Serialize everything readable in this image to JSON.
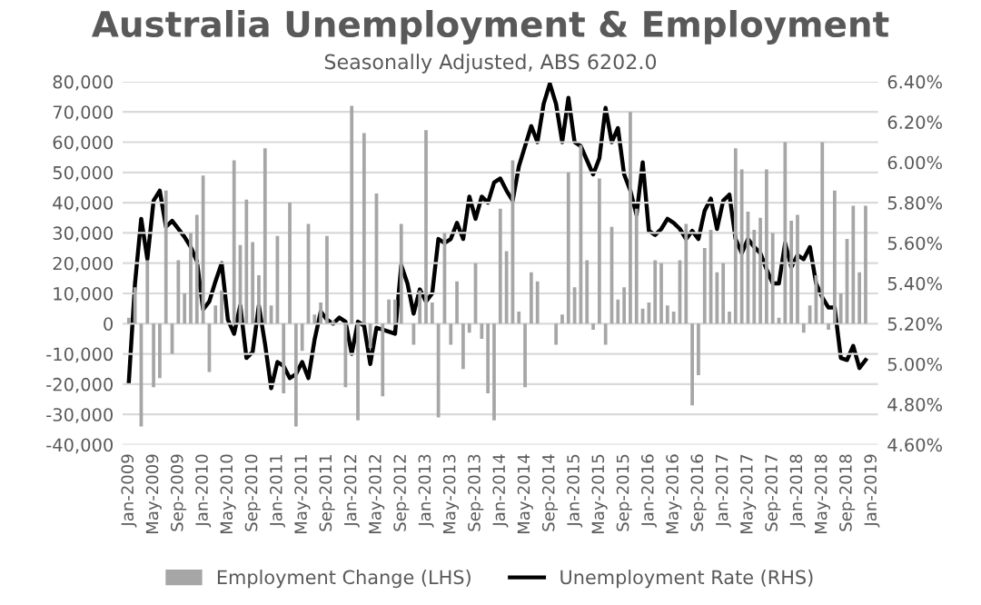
{
  "chart_data": {
    "type": "bar",
    "title": "Australia Unemployment & Employment",
    "subtitle": "Seasonally Adjusted, ABS 6202.0",
    "categories": [
      "Jan-2009",
      null,
      null,
      null,
      "May-2009",
      null,
      null,
      null,
      "Sep-2009",
      null,
      null,
      null,
      "Jan-2010",
      null,
      null,
      null,
      "May-2010",
      null,
      null,
      null,
      "Sep-2010",
      null,
      null,
      null,
      "Jan-2011",
      null,
      null,
      null,
      "May-2011",
      null,
      null,
      null,
      "Sep-2011",
      null,
      null,
      null,
      "Jan-2012",
      null,
      null,
      null,
      "May-2012",
      null,
      null,
      null,
      "Sep-2012",
      null,
      null,
      null,
      "Jan-2013",
      null,
      null,
      null,
      "May-2013",
      null,
      null,
      null,
      "Sep-2013",
      null,
      null,
      null,
      "Jan-2014",
      null,
      null,
      null,
      "May-2014",
      null,
      null,
      null,
      "Sep-2014",
      null,
      null,
      null,
      "Jan-2015",
      null,
      null,
      null,
      "May-2015",
      null,
      null,
      null,
      "Sep-2015",
      null,
      null,
      null,
      "Jan-2016",
      null,
      null,
      null,
      "May-2016",
      null,
      null,
      null,
      "Sep-2016",
      null,
      null,
      null,
      "Jan-2017",
      null,
      null,
      null,
      "May-2017",
      null,
      null,
      null,
      "Sep-2017",
      null,
      null,
      null,
      "Jan-2018",
      null,
      null,
      null,
      "May-2018",
      null,
      null,
      null,
      "Sep-2018",
      null,
      null,
      null,
      "Jan-2019"
    ],
    "series": [
      {
        "name": "Employment Change (LHS)",
        "color": "#a6a6a6",
        "values": [
          2000,
          12000,
          -34000,
          21000,
          -21000,
          -18000,
          44000,
          -10000,
          21000,
          10000,
          30000,
          36000,
          49000,
          -16000,
          6000,
          11000,
          null,
          54000,
          26000,
          41000,
          27000,
          16000,
          58000,
          6000,
          29000,
          -23000,
          40000,
          -34000,
          -9000,
          33000,
          3000,
          7000,
          29000,
          1000,
          null,
          -21000,
          72000,
          -32000,
          63000,
          -8000,
          43000,
          -24000,
          8000,
          8000,
          33000,
          null,
          -7000,
          11000,
          64000,
          7000,
          -31000,
          30000,
          -7000,
          14000,
          -15000,
          -3000,
          20000,
          -5000,
          -23000,
          -32000,
          38000,
          24000,
          54000,
          4000,
          -21000,
          17000,
          14000,
          null,
          null,
          -7000,
          3000,
          50000,
          12000,
          59000,
          21000,
          -2000,
          48000,
          -7000,
          32000,
          8000,
          12000,
          70000,
          38000,
          5000,
          7000,
          21000,
          20000,
          6000,
          4000,
          21000,
          33000,
          -27000,
          -17000,
          25000,
          31000,
          17000,
          20000,
          4000,
          58000,
          51000,
          37000,
          31000,
          35000,
          51000,
          30000,
          2000,
          60000,
          34000,
          36000,
          -3000,
          6000,
          16000,
          60000,
          -2000,
          44000,
          10000,
          28000,
          39000,
          17000,
          39000,
          null
        ]
      },
      {
        "name": "Unemployment Rate (RHS)",
        "type": "line",
        "axis": "y2",
        "color": "#000000",
        "values": [
          4.91,
          5.4,
          5.72,
          5.52,
          5.81,
          5.86,
          5.68,
          5.71,
          5.67,
          5.63,
          5.58,
          5.51,
          5.27,
          5.31,
          5.41,
          5.5,
          5.22,
          5.15,
          5.29,
          5.03,
          5.06,
          5.29,
          5.1,
          4.88,
          5.01,
          4.99,
          4.93,
          4.95,
          5.01,
          4.93,
          5.12,
          5.26,
          5.22,
          5.2,
          5.23,
          5.21,
          5.05,
          5.21,
          5.19,
          5.0,
          5.18,
          5.17,
          5.16,
          5.15,
          5.49,
          5.4,
          5.25,
          5.37,
          5.31,
          5.35,
          5.62,
          5.6,
          5.62,
          5.7,
          5.62,
          5.83,
          5.72,
          5.83,
          5.8,
          5.9,
          5.92,
          5.86,
          5.81,
          5.98,
          6.08,
          6.18,
          6.1,
          6.29,
          6.39,
          6.29,
          6.1,
          6.32,
          6.1,
          6.08,
          6.01,
          5.94,
          6.02,
          6.27,
          6.1,
          6.17,
          5.94,
          5.86,
          5.74,
          6.0,
          5.66,
          5.64,
          5.67,
          5.72,
          5.7,
          5.67,
          5.62,
          5.66,
          5.62,
          5.76,
          5.82,
          5.67,
          5.81,
          5.84,
          5.62,
          5.55,
          5.62,
          5.58,
          5.55,
          5.47,
          5.4,
          5.4,
          5.6,
          5.48,
          5.54,
          5.52,
          5.58,
          5.4,
          5.33,
          5.28,
          5.28,
          5.03,
          5.02,
          5.09,
          4.98,
          5.02,
          null
        ]
      }
    ],
    "ylim": [
      -40000,
      80000
    ],
    "yticks": [
      {
        "value": -40000,
        "label": "-40,000"
      },
      {
        "value": -30000,
        "label": "-30,000"
      },
      {
        "value": -20000,
        "label": "-20,000"
      },
      {
        "value": -10000,
        "label": "-10,000"
      },
      0,
      {
        "value": 10000,
        "label": "10,000"
      },
      {
        "value": 20000,
        "label": "20,000"
      },
      {
        "value": 30000,
        "label": "30,000"
      },
      {
        "value": 40000,
        "label": "40,000"
      },
      {
        "value": 50000,
        "label": "50,000"
      },
      {
        "value": 60000,
        "label": "60,000"
      },
      {
        "value": 70000,
        "label": "70,000"
      },
      {
        "value": 80000,
        "label": "80,000"
      }
    ],
    "y2lim": [
      4.6,
      6.4
    ],
    "y2ticks": [
      {
        "value": 4.6,
        "label": "4.60%"
      },
      {
        "value": 4.8,
        "label": "4.80%"
      },
      {
        "value": 5.0,
        "label": "5.00%"
      },
      {
        "value": 5.2,
        "label": "5.20%"
      },
      {
        "value": 5.4,
        "label": "5.40%"
      },
      {
        "value": 5.6,
        "label": "5.60%"
      },
      {
        "value": 5.8,
        "label": "5.80%"
      },
      {
        "value": 6.0,
        "label": "6.00%"
      },
      {
        "value": 6.2,
        "label": "6.20%"
      },
      {
        "value": 6.4,
        "label": "6.40%"
      }
    ],
    "grid": "y",
    "legend": "bottom",
    "marker": "none",
    "line_style": "solid"
  }
}
